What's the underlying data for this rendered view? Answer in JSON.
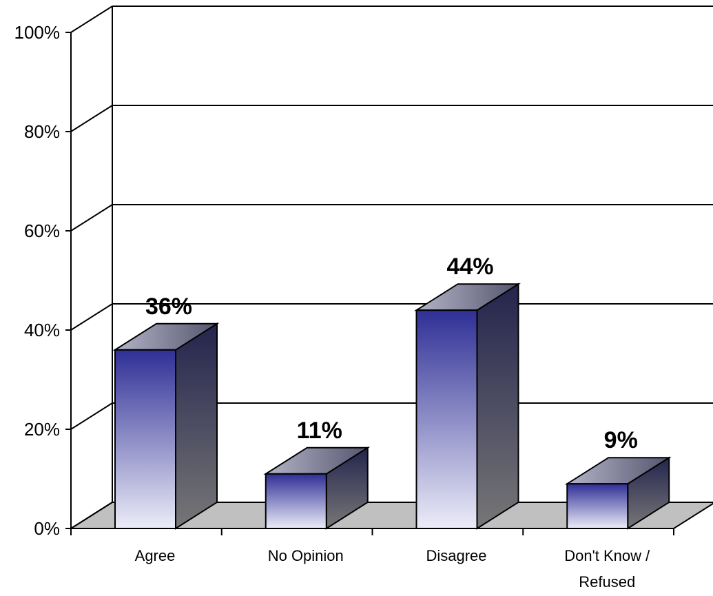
{
  "chart_data": {
    "type": "bar",
    "three_d": true,
    "categories": [
      "Agree",
      "No Opinion",
      "Disagree",
      "Don't Know / Refused"
    ],
    "category_lines": [
      [
        "Agree"
      ],
      [
        "No Opinion"
      ],
      [
        "Disagree"
      ],
      [
        "Don't Know /",
        "Refused"
      ]
    ],
    "values": [
      36,
      11,
      44,
      9
    ],
    "data_labels": [
      "36%",
      "11%",
      "44%",
      "9%"
    ],
    "ylim": [
      0,
      100
    ],
    "yticks": [
      0,
      20,
      40,
      60,
      80,
      100
    ],
    "ytick_labels": [
      "0%",
      "20%",
      "40%",
      "60%",
      "80%",
      "100%"
    ],
    "grid": true,
    "legend": "none",
    "colors": {
      "bar_front_top": "#2f2f96",
      "bar_front_bottom": "#ececf8",
      "bar_side_top": "#24244e",
      "bar_side_bottom": "#777777",
      "bar_top_face_light": "#b4b4c8",
      "bar_top_face_dark": "#55556e",
      "floor": "#c0c0c0"
    }
  }
}
